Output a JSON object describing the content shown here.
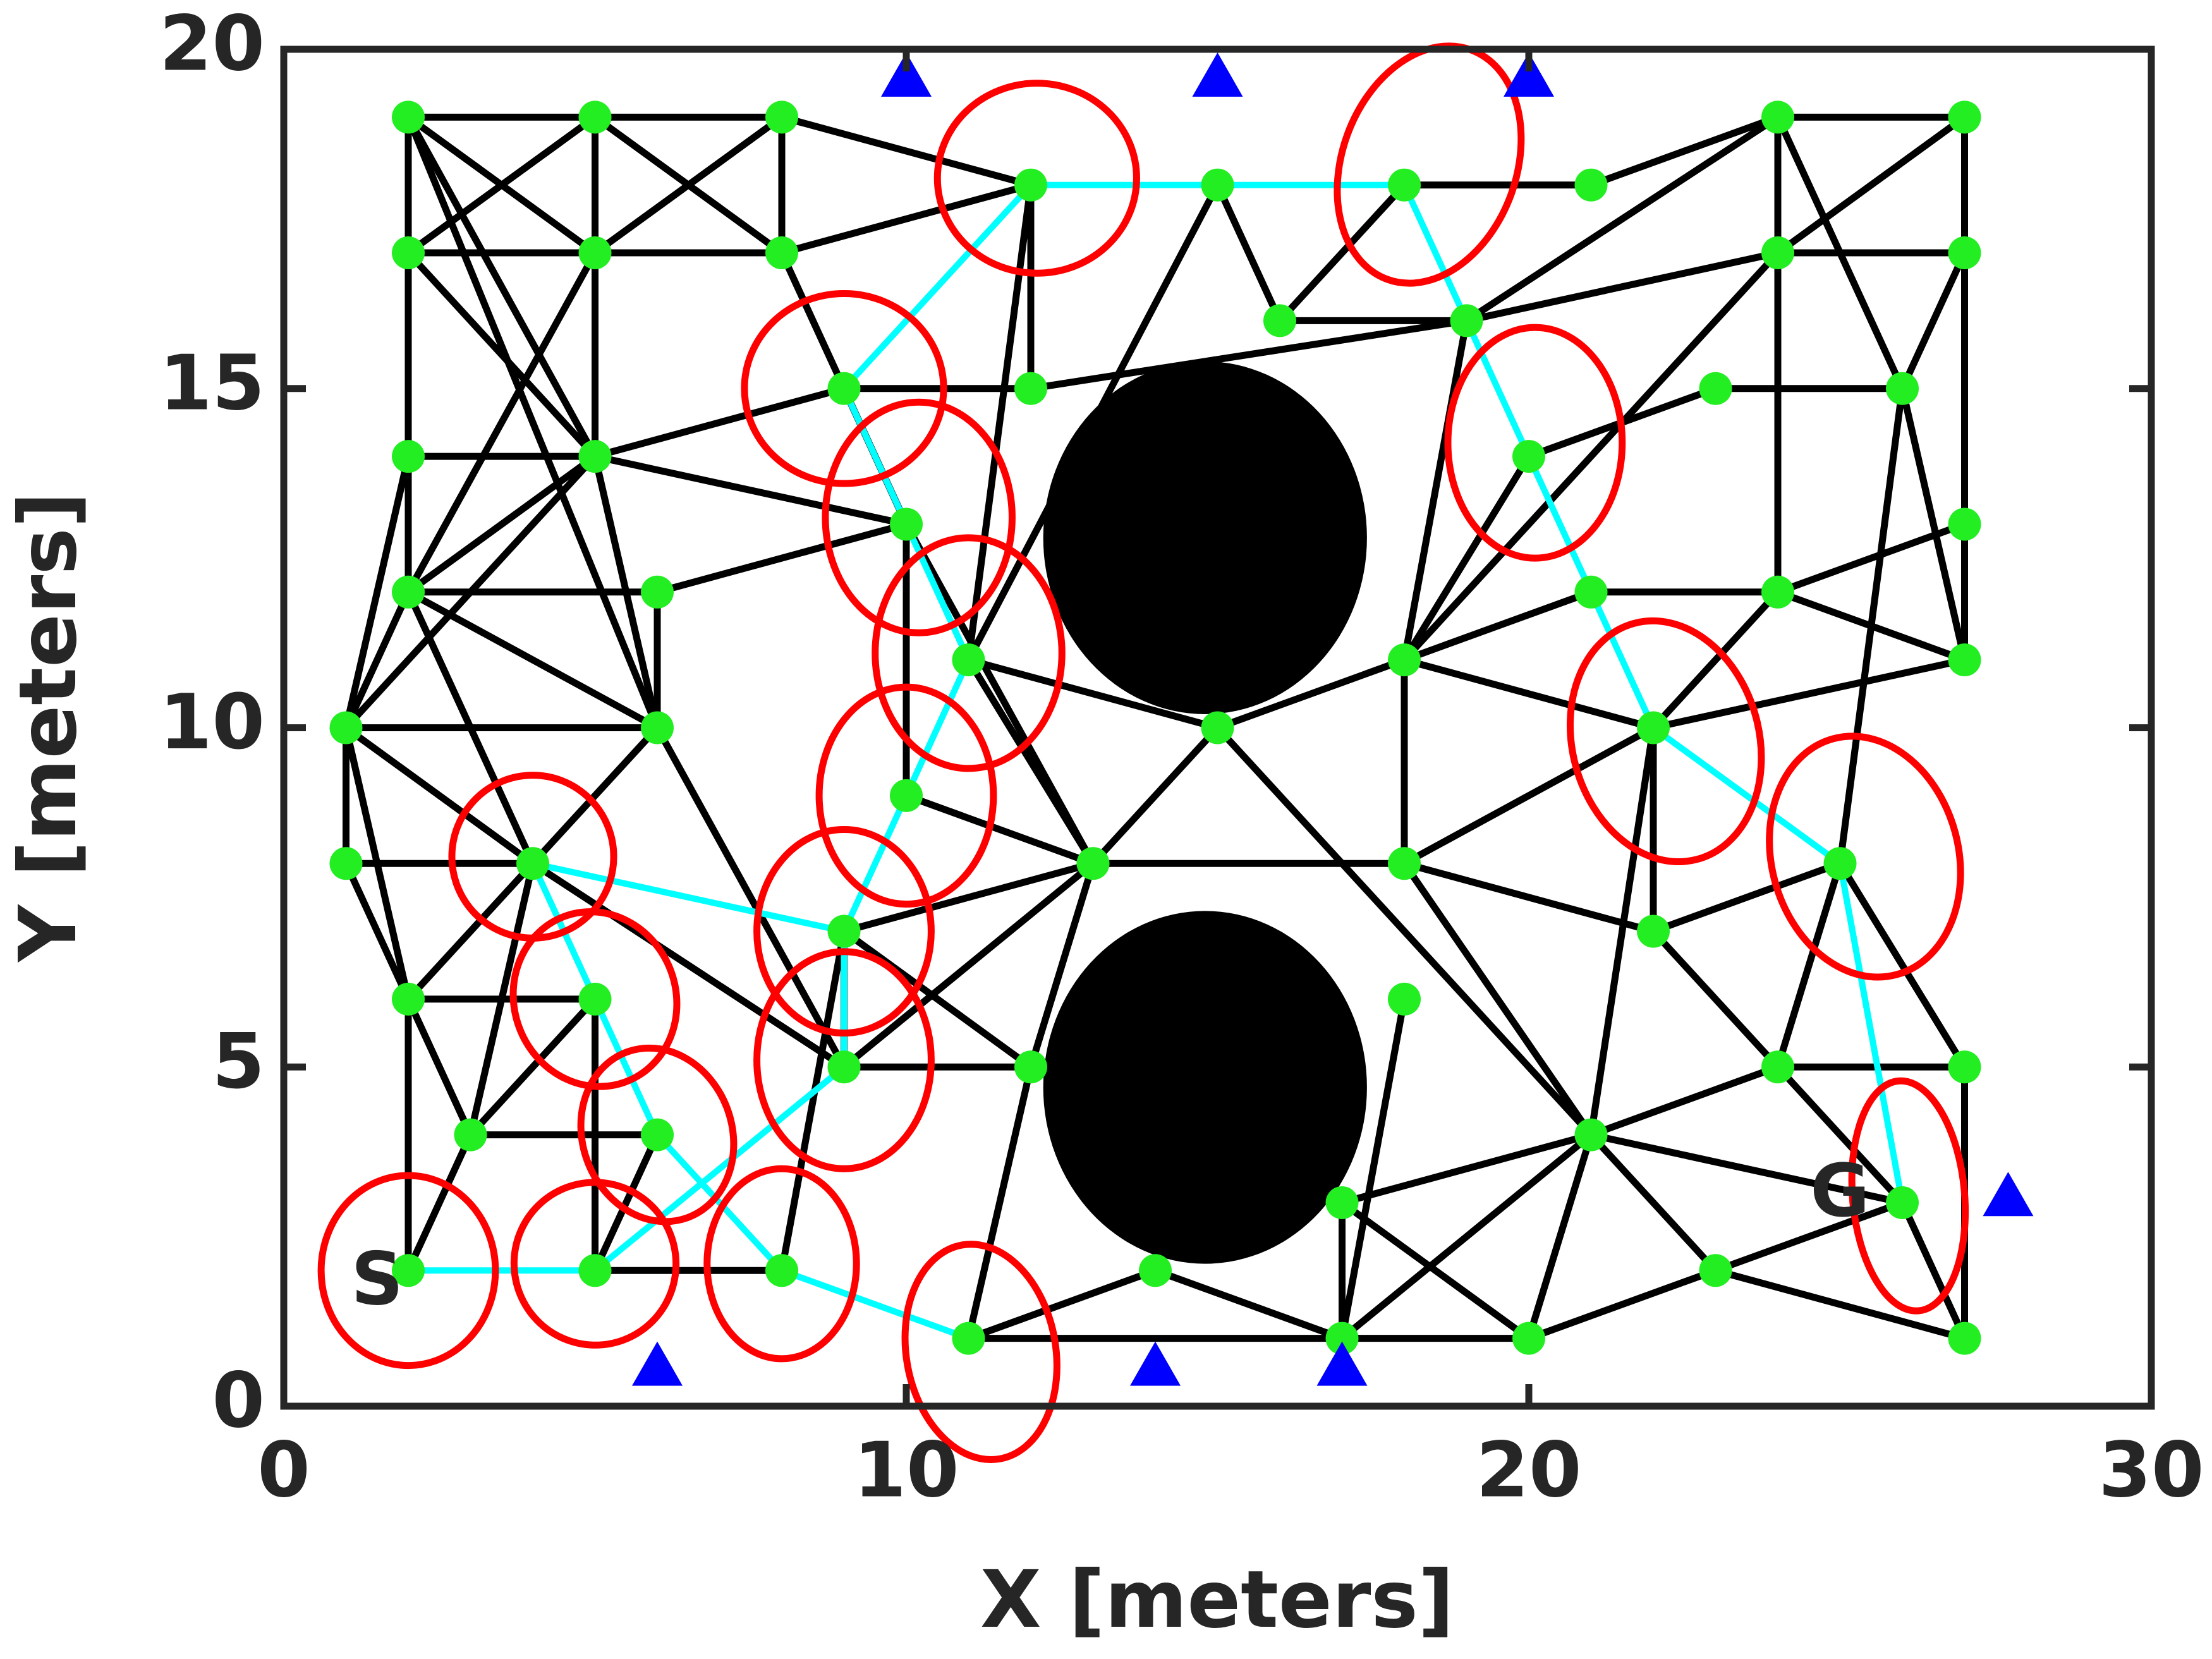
{
  "chart_data": {
    "type": "roadmap",
    "xlabel": "X [meters]",
    "ylabel": "Y [meters]",
    "xlim": [
      0,
      30
    ],
    "ylim": [
      0,
      20
    ],
    "xticks": [
      0,
      10,
      20,
      30
    ],
    "yticks": [
      0,
      5,
      10,
      15,
      20
    ],
    "obstacles": {
      "color": "#000000",
      "x": [
        14.8,
        14.8
      ],
      "y": [
        12.8,
        4.7
      ],
      "rx": [
        2.6,
        2.6
      ],
      "ry": [
        2.6,
        2.6
      ]
    },
    "edges": {
      "color": "#000000",
      "segments": [
        [
          2,
          19,
          5,
          19
        ],
        [
          5,
          19,
          8,
          19
        ],
        [
          2,
          17,
          5,
          17
        ],
        [
          5,
          17,
          8,
          17
        ],
        [
          2,
          19,
          2,
          17
        ],
        [
          5,
          19,
          5,
          17
        ],
        [
          8,
          19,
          8,
          17
        ],
        [
          2,
          19,
          5,
          17
        ],
        [
          5,
          19,
          2,
          17
        ],
        [
          5,
          19,
          8,
          17
        ],
        [
          8,
          19,
          5,
          17
        ],
        [
          8,
          19,
          12,
          18
        ],
        [
          8,
          17,
          12,
          18
        ],
        [
          2,
          19,
          5,
          14
        ],
        [
          2,
          19,
          6,
          10
        ],
        [
          2,
          17,
          2,
          12
        ],
        [
          2,
          17,
          5,
          14
        ],
        [
          5,
          17,
          2,
          12
        ],
        [
          5,
          17,
          5,
          14
        ],
        [
          8,
          17,
          9,
          15
        ],
        [
          9,
          15,
          12,
          15
        ],
        [
          12,
          15,
          12,
          18
        ],
        [
          12,
          18,
          11,
          11
        ],
        [
          9,
          15,
          10,
          13
        ],
        [
          5,
          14,
          9,
          15
        ],
        [
          5,
          14,
          10,
          13
        ],
        [
          2,
          14,
          5,
          14
        ],
        [
          5,
          14,
          2,
          12
        ],
        [
          5,
          14,
          1,
          10
        ],
        [
          5,
          14,
          6,
          10
        ],
        [
          2,
          12,
          6,
          12
        ],
        [
          6,
          12,
          10,
          13
        ],
        [
          2,
          12,
          6,
          10
        ],
        [
          2,
          12,
          1,
          10
        ],
        [
          2,
          12,
          2,
          14
        ],
        [
          2,
          14,
          1,
          10
        ],
        [
          1,
          10,
          6,
          10
        ],
        [
          1,
          10,
          1,
          8
        ],
        [
          1,
          10,
          2,
          6
        ],
        [
          1,
          8,
          4,
          8
        ],
        [
          1,
          8,
          2,
          6
        ],
        [
          1,
          10,
          4,
          8
        ],
        [
          2,
          12,
          4,
          8
        ],
        [
          6,
          10,
          2,
          6
        ],
        [
          6,
          10,
          6,
          12
        ],
        [
          6,
          10,
          9,
          5
        ],
        [
          4,
          8,
          9,
          5
        ],
        [
          4,
          8,
          3,
          4
        ],
        [
          2,
          6,
          5,
          6
        ],
        [
          2,
          6,
          2,
          2
        ],
        [
          2,
          6,
          3,
          4
        ],
        [
          5,
          6,
          3,
          4
        ],
        [
          5,
          6,
          5,
          2
        ],
        [
          3,
          4,
          6,
          4
        ],
        [
          3,
          4,
          2,
          2
        ],
        [
          6,
          4,
          5,
          2
        ],
        [
          5,
          2,
          8,
          2
        ],
        [
          12,
          15,
          19,
          16
        ],
        [
          10,
          13,
          10,
          9
        ],
        [
          10,
          13,
          13,
          8
        ],
        [
          11,
          11,
          13,
          8
        ],
        [
          11,
          11,
          15,
          10
        ],
        [
          10,
          9,
          13,
          8
        ],
        [
          9,
          7,
          13,
          8
        ],
        [
          9,
          7,
          9,
          5
        ],
        [
          9,
          7,
          12,
          5
        ],
        [
          9,
          5,
          12,
          5
        ],
        [
          9,
          5,
          13,
          8
        ],
        [
          8,
          2,
          9,
          7
        ],
        [
          12,
          5,
          11,
          1
        ],
        [
          13,
          8,
          15,
          10
        ],
        [
          13,
          8,
          18,
          8
        ],
        [
          15,
          10,
          18,
          11
        ],
        [
          15,
          10,
          21,
          4
        ],
        [
          16,
          16,
          15,
          18
        ],
        [
          16,
          16,
          18,
          18
        ],
        [
          15,
          18,
          11,
          11
        ],
        [
          16,
          16,
          19,
          16
        ],
        [
          18,
          18,
          21,
          18
        ],
        [
          19,
          16,
          24,
          19
        ],
        [
          19,
          16,
          24,
          17
        ],
        [
          19,
          16,
          18,
          11
        ],
        [
          18,
          11,
          20,
          14
        ],
        [
          18,
          11,
          24,
          17
        ],
        [
          18,
          11,
          21,
          12
        ],
        [
          18,
          11,
          22,
          10
        ],
        [
          18,
          11,
          18,
          8
        ],
        [
          20,
          14,
          23,
          15
        ],
        [
          21,
          18,
          24,
          19
        ],
        [
          24,
          19,
          27,
          19
        ],
        [
          24,
          19,
          24,
          17
        ],
        [
          24,
          17,
          27,
          17
        ],
        [
          27,
          19,
          27,
          11
        ],
        [
          24,
          19,
          26,
          15
        ],
        [
          27,
          19,
          24,
          17
        ],
        [
          27,
          17,
          26,
          15
        ],
        [
          23,
          15,
          26,
          15
        ],
        [
          24,
          17,
          24,
          12
        ],
        [
          26,
          15,
          27,
          11
        ],
        [
          26,
          15,
          25,
          8
        ],
        [
          24,
          12,
          27,
          13
        ],
        [
          24,
          12,
          27,
          11
        ],
        [
          21,
          12,
          24,
          12
        ],
        [
          24,
          12,
          22,
          10
        ],
        [
          22,
          10,
          27,
          11
        ],
        [
          22,
          10,
          18,
          8
        ],
        [
          22,
          10,
          22,
          7
        ],
        [
          18,
          8,
          22,
          7
        ],
        [
          22,
          7,
          25,
          8
        ],
        [
          22,
          7,
          26,
          3
        ],
        [
          25,
          8,
          24,
          5
        ],
        [
          24,
          5,
          27,
          5
        ],
        [
          27,
          5,
          27,
          1
        ],
        [
          25,
          8,
          27,
          5
        ],
        [
          21,
          4,
          24,
          5
        ],
        [
          21,
          4,
          26,
          3
        ],
        [
          21,
          4,
          18,
          8
        ],
        [
          21,
          4,
          20,
          1
        ],
        [
          21,
          4,
          17,
          1
        ],
        [
          17,
          3,
          17,
          1
        ],
        [
          17,
          3,
          20,
          1
        ],
        [
          17,
          3,
          21,
          4
        ],
        [
          17,
          1,
          20,
          1
        ],
        [
          11,
          1,
          17,
          1
        ],
        [
          11,
          1,
          14,
          2
        ],
        [
          14,
          2,
          17,
          1
        ],
        [
          17,
          1,
          18,
          6
        ],
        [
          13,
          8,
          12,
          5
        ],
        [
          21,
          4,
          23,
          2
        ],
        [
          23,
          2,
          27,
          1
        ],
        [
          26,
          3,
          27,
          1
        ],
        [
          20,
          1,
          26,
          3
        ],
        [
          21,
          4,
          22,
          10
        ]
      ]
    },
    "paths": [
      {
        "color": "#00ffff",
        "x": [
          2,
          5,
          9,
          9,
          11,
          10,
          9,
          12,
          15,
          18,
          20,
          21,
          22,
          25,
          26
        ],
        "y": [
          2,
          2,
          5,
          7,
          11,
          13,
          15,
          18,
          18,
          18,
          14,
          12,
          10,
          8,
          3
        ]
      },
      {
        "color": "#00ffff",
        "x": [
          9,
          4,
          6,
          8,
          11
        ],
        "y": [
          7,
          8,
          4,
          2,
          1
        ]
      }
    ],
    "nodes": {
      "color": "#22ee22",
      "x": [
        2,
        5,
        8,
        2,
        5,
        8,
        12,
        15,
        18,
        21,
        24,
        27,
        24,
        27,
        16,
        19,
        9,
        12,
        23,
        26,
        2,
        5,
        10,
        20,
        27,
        2,
        6,
        21,
        24,
        1,
        6,
        15,
        22,
        11,
        18,
        27,
        10,
        1,
        4,
        13,
        18,
        25,
        9,
        22,
        2,
        5,
        18,
        12,
        9,
        24,
        27,
        3,
        6,
        21,
        17,
        26,
        2,
        5,
        8,
        14,
        23,
        11,
        17,
        20,
        27
      ],
      "y": [
        19,
        19,
        19,
        17,
        17,
        17,
        18,
        18,
        18,
        18,
        19,
        19,
        17,
        17,
        16,
        16,
        15,
        15,
        15,
        15,
        14,
        14,
        13,
        14,
        13,
        12,
        12,
        12,
        12,
        10,
        10,
        10,
        10,
        11,
        11,
        11,
        9,
        8,
        8,
        8,
        8,
        8,
        7,
        7,
        6,
        6,
        6,
        5,
        5,
        5,
        5,
        4,
        4,
        4,
        3,
        3,
        2,
        2,
        2,
        2,
        2,
        1,
        1,
        1,
        1
      ]
    },
    "ellipses": {
      "color": "#ff0000",
      "x": [
        2,
        5,
        8,
        11.2,
        6,
        5,
        4,
        9,
        9,
        10,
        11,
        10.2,
        9,
        12.1,
        18.4,
        20.1,
        22.2,
        25.4,
        26.1
      ],
      "y": [
        2,
        2.1,
        2.1,
        0.8,
        4,
        6,
        8.1,
        5.1,
        7,
        9,
        11.1,
        13.1,
        15,
        18.1,
        18.3,
        14.2,
        9.8,
        8.1,
        3.1
      ],
      "rx": [
        1.4,
        1.3,
        1.2,
        1.2,
        1.2,
        1.3,
        1.3,
        1.4,
        1.4,
        1.4,
        1.5,
        1.5,
        1.6,
        1.6,
        1.4,
        1.4,
        1.5,
        1.5,
        0.9
      ],
      "ry": [
        1.4,
        1.2,
        1.4,
        1.6,
        1.3,
        1.3,
        1.2,
        1.6,
        1.5,
        1.6,
        1.7,
        1.7,
        1.4,
        1.4,
        1.8,
        1.7,
        1.8,
        1.8,
        1.7
      ],
      "angle": [
        0,
        20,
        0,
        10,
        20,
        20,
        0,
        0,
        0,
        0,
        0,
        0,
        0,
        0,
        -20,
        0,
        15,
        15,
        5
      ]
    },
    "landmarks": {
      "color": "#0000ff",
      "x": [
        10,
        15,
        20,
        6,
        14,
        17,
        27.7
      ],
      "y": [
        19.6,
        19.6,
        19.6,
        0.6,
        0.6,
        0.6,
        3.1
      ]
    },
    "annotations": [
      {
        "text": "S",
        "x": 1.5,
        "y": 1.8
      },
      {
        "text": "G",
        "x": 25,
        "y": 3.1
      }
    ]
  }
}
